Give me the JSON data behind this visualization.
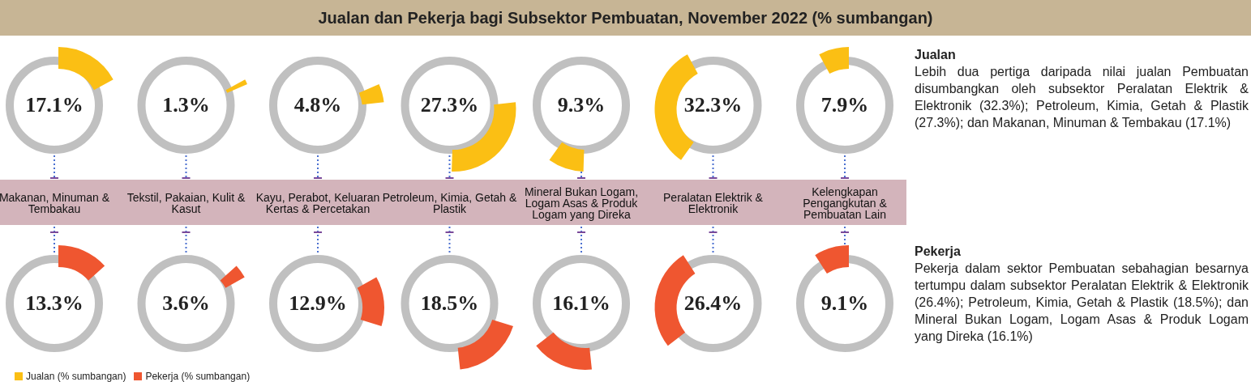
{
  "chart_data": {
    "type": "other",
    "title": "Jualan dan Pekerja bagi Subsektor Pembuatan, November 2022 (% sumbangan)",
    "categories": [
      "Makanan, Minuman & Tembakau",
      "Tekstil, Pakaian, Kulit & Kasut",
      "Kayu, Perabot, Keluaran Kertas & Percetakan",
      "Petroleum, Kimia, Getah & Plastik",
      "Mineral Bukan Logam, Logam Asas & Produk Logam yang Direka",
      "Peralatan Elektrik & Elektronik",
      "Kelengkapan Pengangkutan & Pembuatan Lain"
    ],
    "series": [
      {
        "name": "Jualan (% sumbangan)",
        "color": "#fbbf14",
        "values": [
          17.1,
          1.3,
          4.8,
          27.3,
          9.3,
          32.3,
          7.9
        ],
        "value_labels": [
          "17.1%",
          "1.3%",
          "4.8%",
          "27.3%",
          "9.3%",
          "32.3%",
          "7.9%"
        ]
      },
      {
        "name": "Pekerja (% sumbangan)",
        "color": "#ef5630",
        "values": [
          13.3,
          3.6,
          12.9,
          18.5,
          16.1,
          26.4,
          9.1
        ],
        "value_labels": [
          "13.3%",
          "3.6%",
          "12.9%",
          "18.5%",
          "16.1%",
          "26.4%",
          "9.1%"
        ]
      }
    ],
    "legend": "bottom left",
    "annotations": [
      "Jualan",
      "Lebih dua pertiga daripada nilai jualan Pembuatan disumbangkan oleh subsektor Peralatan Elektrik & Elektronik (32.3%); Petroleum, Kimia, Getah & Plastik (27.3%); dan Makanan, Minuman & Tembakau (17.1%)",
      "Pekerja",
      "Pekerja dalam sektor Pembuatan sebahagian besarnya tertumpu dalam subsektor Peralatan Elektrik & Elektronik (26.4%); Petroleum, Kimia, Getah & Plastik (18.5%); dan Mineral Bukan Logam, Logam Asas & Produk Logam yang Direka (16.1%)"
    ]
  }
}
